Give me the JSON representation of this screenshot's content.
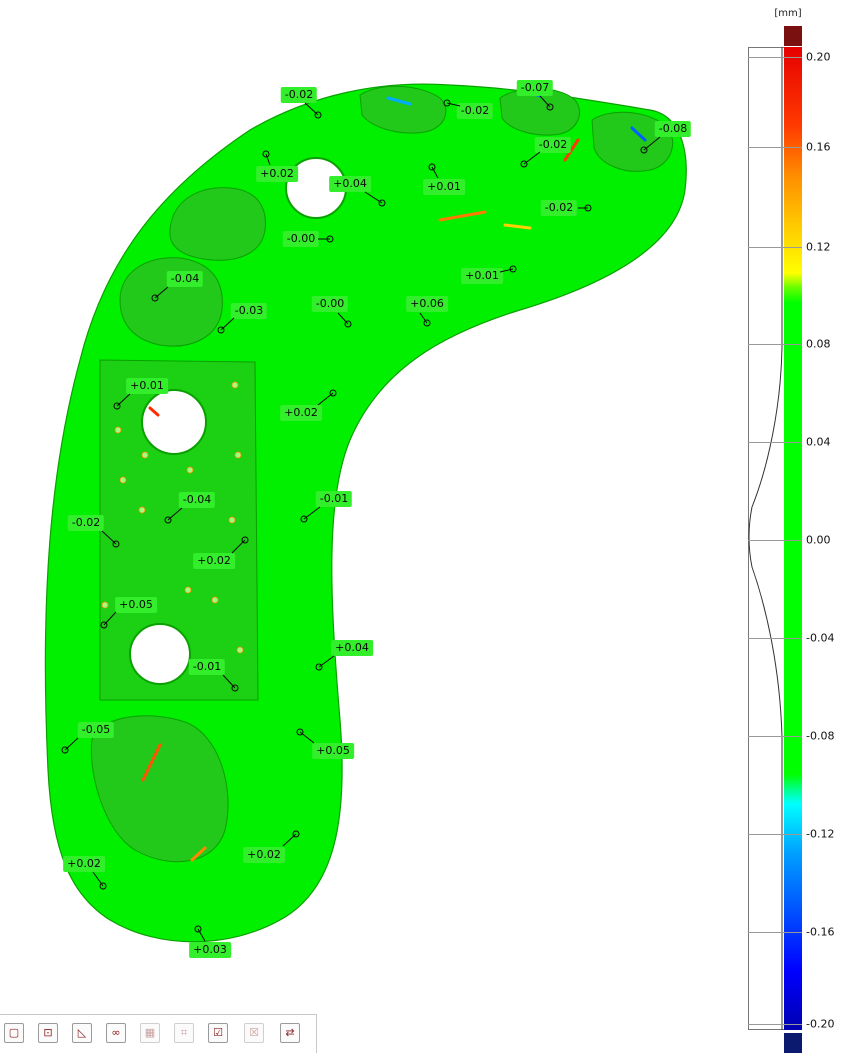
{
  "legend": {
    "unit": "[mm]",
    "ticks": [
      "0.20",
      "0.16",
      "0.12",
      "0.08",
      "0.04",
      "0.00",
      "-0.04",
      "-0.08",
      "-0.12",
      "-0.16",
      "-0.20"
    ],
    "colors": {
      "over": "#7b1010",
      "max": "#e60000",
      "mid": "#00ff00",
      "min": "#0000b0",
      "under": "#0b1a6e"
    }
  },
  "deviation_labels": [
    "-0.02",
    "-0.02",
    "-0.07",
    "-0.08",
    "+0.02",
    "+0.04",
    "-0.02",
    "+0.01",
    "-0.02",
    "-0.00",
    "+0.01",
    "-0.04",
    "-0.03",
    "-0.00",
    "+0.06",
    "+0.01",
    "+0.02",
    "-0.04",
    "-0.01",
    "-0.02",
    "+0.02",
    "+0.05",
    "+0.04",
    "-0.01",
    "-0.05",
    "+0.05",
    "+0.02",
    "+0.02",
    "+0.03"
  ],
  "toolbar": {
    "buttons": [
      {
        "name": "view-box-button",
        "icon": "box-icon",
        "glyph": "▢",
        "enabled": true
      },
      {
        "name": "align-button",
        "icon": "align-icon",
        "glyph": "⊡",
        "enabled": true
      },
      {
        "name": "measure-angle-button",
        "icon": "angle-icon",
        "glyph": "◺",
        "enabled": true
      },
      {
        "name": "link-button",
        "icon": "link-icon",
        "glyph": "∞",
        "enabled": true
      },
      {
        "name": "grid-button",
        "icon": "grid-icon",
        "glyph": "▦",
        "enabled": false
      },
      {
        "name": "fit-button",
        "icon": "fit-icon",
        "glyph": "⌗",
        "enabled": false
      },
      {
        "name": "check-button",
        "icon": "check-icon",
        "glyph": "☑",
        "enabled": true
      },
      {
        "name": "delete-button",
        "icon": "delete-icon",
        "glyph": "☒",
        "enabled": false
      },
      {
        "name": "transfer-button",
        "icon": "transfer-icon",
        "glyph": "⇄",
        "enabled": true
      }
    ]
  }
}
